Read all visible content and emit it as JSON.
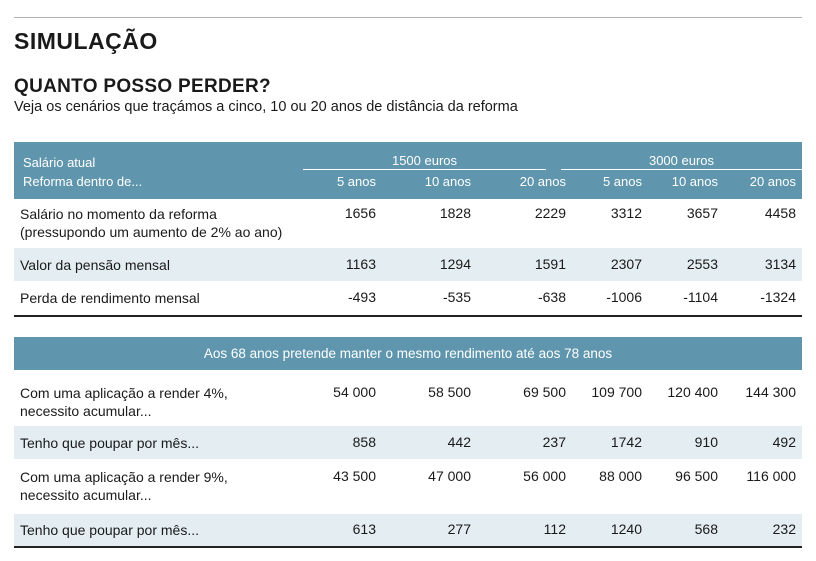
{
  "kicker": "SIMULAÇÃO",
  "headline": "QUANTO POSSO PERDER?",
  "subtitle": "Veja os cenários que traçámos a cinco, 10 ou 20 anos de distância da reforma",
  "header": {
    "label_salary": "Salário atual",
    "label_retirement": "Reforma dentro de...",
    "groups": [
      "1500 euros",
      "3000 euros"
    ],
    "columns": [
      "5 anos",
      "10 anos",
      "20 anos",
      "5 anos",
      "10 anos",
      "20 anos"
    ]
  },
  "table1": [
    {
      "label1": "Salário no momento da reforma",
      "label2": "(pressupondo um aumento de 2% ao ano)",
      "values": [
        "1656",
        "1828",
        "2229",
        "3312",
        "3657",
        "4458"
      ]
    },
    {
      "label1": "Valor da pensão mensal",
      "label2": "",
      "values": [
        "1163",
        "1294",
        "1591",
        "2307",
        "2553",
        "3134"
      ]
    },
    {
      "label1": "Perda de rendimento mensal",
      "label2": "",
      "values": [
        "-493",
        "-535",
        "-638",
        "-1006",
        "-1104",
        "-1324"
      ]
    }
  ],
  "banner": "Aos 68 anos pretende manter o mesmo rendimento até aos 78 anos",
  "table2": [
    {
      "label1": "Com uma aplicação a render 4%,",
      "label2": "necessito acumular...",
      "values": [
        "54 000",
        "58 500",
        "69 500",
        "109 700",
        "120 400",
        "144 300"
      ]
    },
    {
      "label1": "Tenho que poupar por mês...",
      "label2": "",
      "values": [
        "858",
        "442",
        "237",
        "1742",
        "910",
        "492"
      ]
    },
    {
      "label1": "Com uma aplicação a render 9%,",
      "label2": "necessito acumular...",
      "values": [
        "43 500",
        "47 000",
        "56 000",
        "88 000",
        "96 500",
        "116 000"
      ]
    },
    {
      "label1": "Tenho que poupar por mês...",
      "label2": "",
      "values": [
        "613",
        "277",
        "112",
        "1240",
        "568",
        "232"
      ]
    }
  ]
}
